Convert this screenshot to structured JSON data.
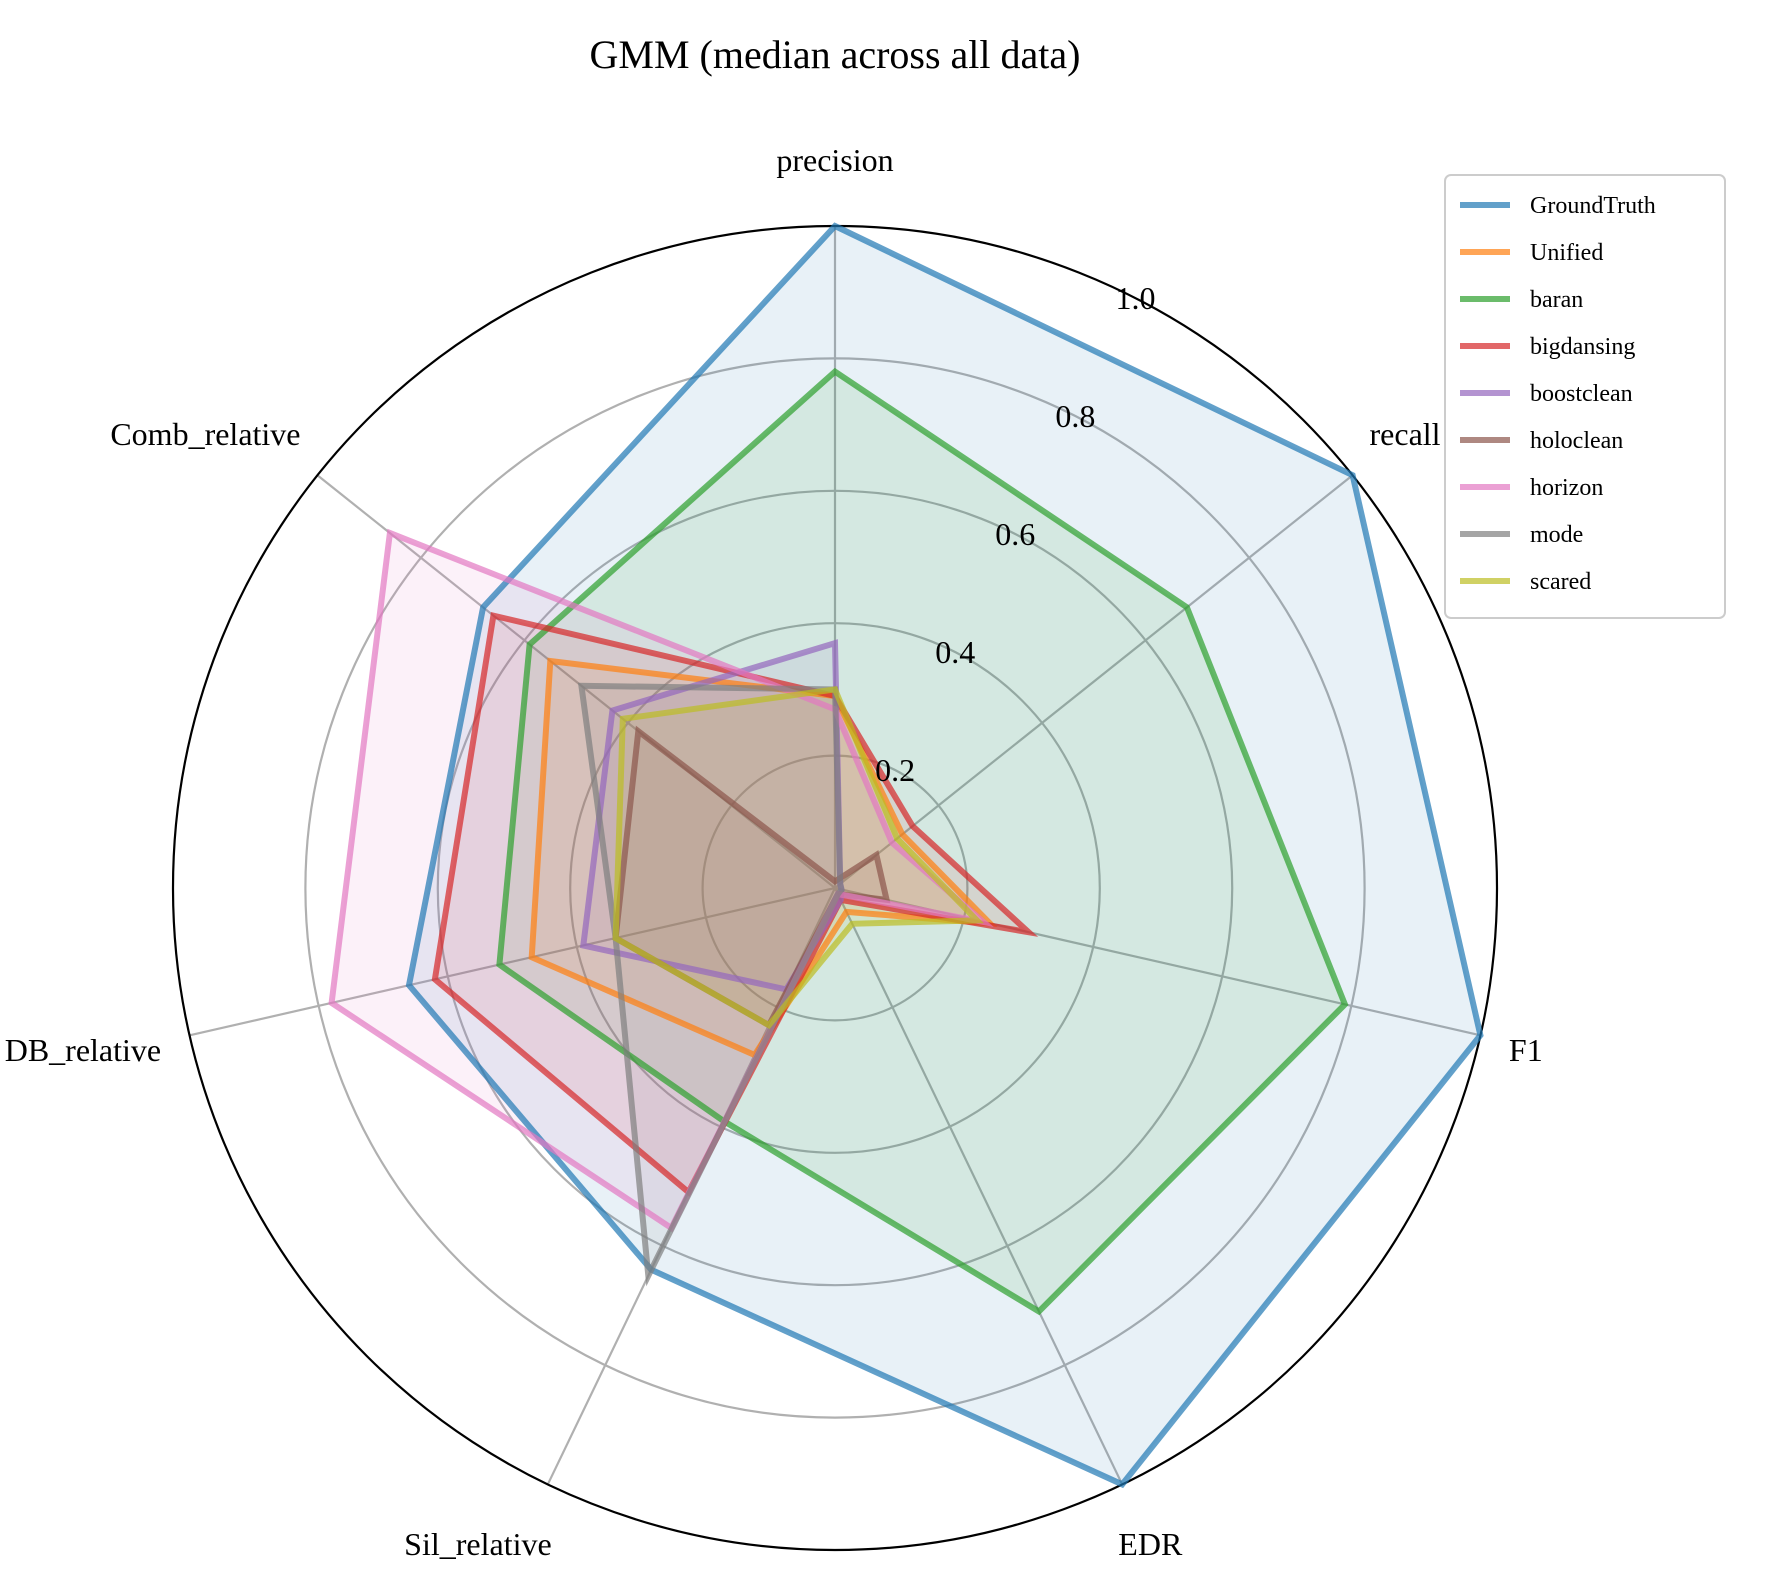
{
  "chart_data": {
    "type": "radar",
    "title": "GMM (median across all data)",
    "axes": [
      "precision",
      "recall",
      "F1",
      "EDR",
      "Sil_relative",
      "DB_relative",
      "Comb_relative"
    ],
    "radial_ticks": [
      0.2,
      0.4,
      0.6,
      0.8,
      1.0
    ],
    "radial_tick_labels": [
      "0.2",
      "0.4",
      "0.6",
      "0.8",
      "1.0"
    ],
    "rlim": [
      0,
      1.0
    ],
    "grid": true,
    "legend_position": "top-right",
    "series": [
      {
        "name": "GroundTruth",
        "color": "#1f77b4",
        "values": [
          1.0,
          1.0,
          1.0,
          1.0,
          0.64,
          0.66,
          0.68
        ]
      },
      {
        "name": "Unified",
        "color": "#ff7f0e",
        "values": [
          0.29,
          0.13,
          0.24,
          0.04,
          0.28,
          0.47,
          0.55
        ]
      },
      {
        "name": "baran",
        "color": "#2ca02c",
        "values": [
          0.78,
          0.68,
          0.79,
          0.71,
          0.39,
          0.52,
          0.59
        ]
      },
      {
        "name": "bigdansing",
        "color": "#d62728",
        "values": [
          0.29,
          0.15,
          0.3,
          0.02,
          0.51,
          0.62,
          0.66
        ]
      },
      {
        "name": "boostclean",
        "color": "#9467bd",
        "values": [
          0.37,
          0.01,
          0.01,
          0.02,
          0.17,
          0.39,
          0.43
        ]
      },
      {
        "name": "holoclean",
        "color": "#8c564b",
        "values": [
          0.01,
          0.08,
          0.08,
          0.01,
          0.23,
          0.34,
          0.38
        ]
      },
      {
        "name": "horizon",
        "color": "#e377c2",
        "values": [
          0.27,
          0.11,
          0.23,
          0.01,
          0.57,
          0.78,
          0.86
        ]
      },
      {
        "name": "mode",
        "color": "#7f7f7f",
        "values": [
          0.3,
          0.01,
          0.01,
          0.01,
          0.65,
          0.34,
          0.49
        ]
      },
      {
        "name": "scared",
        "color": "#bcbd22",
        "values": [
          0.3,
          0.12,
          0.22,
          0.06,
          0.23,
          0.34,
          0.41
        ]
      }
    ]
  }
}
